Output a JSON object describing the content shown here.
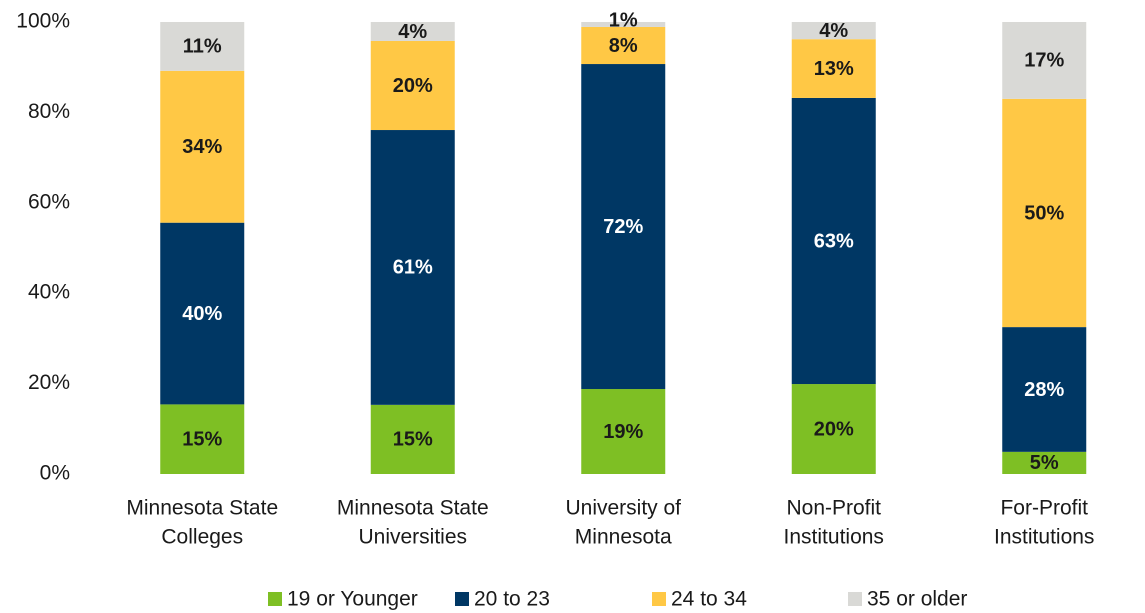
{
  "chart_data": {
    "type": "stacked_bar",
    "categories": [
      [
        "Minnesota State",
        "Colleges"
      ],
      [
        "Minnesota State",
        "Universities"
      ],
      [
        "University of",
        "Minnesota"
      ],
      [
        "Non-Profit",
        "Institutions"
      ],
      [
        "For-Profit",
        "Institutions"
      ]
    ],
    "series": [
      {
        "name": "19 or Younger",
        "color": "#7ebf24",
        "label_color": "#1a1a1a",
        "values": [
          15.4,
          15.3,
          18.8,
          19.9,
          4.9
        ],
        "value_labels": [
          "15%",
          "15%",
          "19%",
          "20%",
          "5%"
        ]
      },
      {
        "name": "20 to 23",
        "color": "#003764",
        "label_color": "#ffffff",
        "values": [
          40.2,
          60.8,
          71.9,
          63.3,
          27.6
        ],
        "value_labels": [
          "40%",
          "61%",
          "72%",
          "63%",
          "28%"
        ]
      },
      {
        "name": "24 to 34",
        "color": "#ffc845",
        "label_color": "#1a1a1a",
        "values": [
          33.6,
          19.7,
          8.2,
          13.0,
          50.5
        ],
        "value_labels": [
          "34%",
          "20%",
          "8%",
          "13%",
          "50%"
        ]
      },
      {
        "name": "35 or older",
        "color": "#d9d9d6",
        "label_color": "#1a1a1a",
        "values": [
          10.8,
          4.2,
          1.1,
          3.8,
          17.0
        ],
        "value_labels": [
          "11%",
          "4%",
          "1%",
          "4%",
          "17%"
        ]
      }
    ],
    "ylim": [
      0,
      100
    ],
    "yticks": [
      {
        "value": 0,
        "label": "0%"
      },
      {
        "value": 20,
        "label": "20%"
      },
      {
        "value": 40,
        "label": "40%"
      },
      {
        "value": 60,
        "label": "60%"
      },
      {
        "value": 80,
        "label": "80%"
      },
      {
        "value": 100,
        "label": "100%"
      }
    ],
    "legend": "bottom"
  }
}
